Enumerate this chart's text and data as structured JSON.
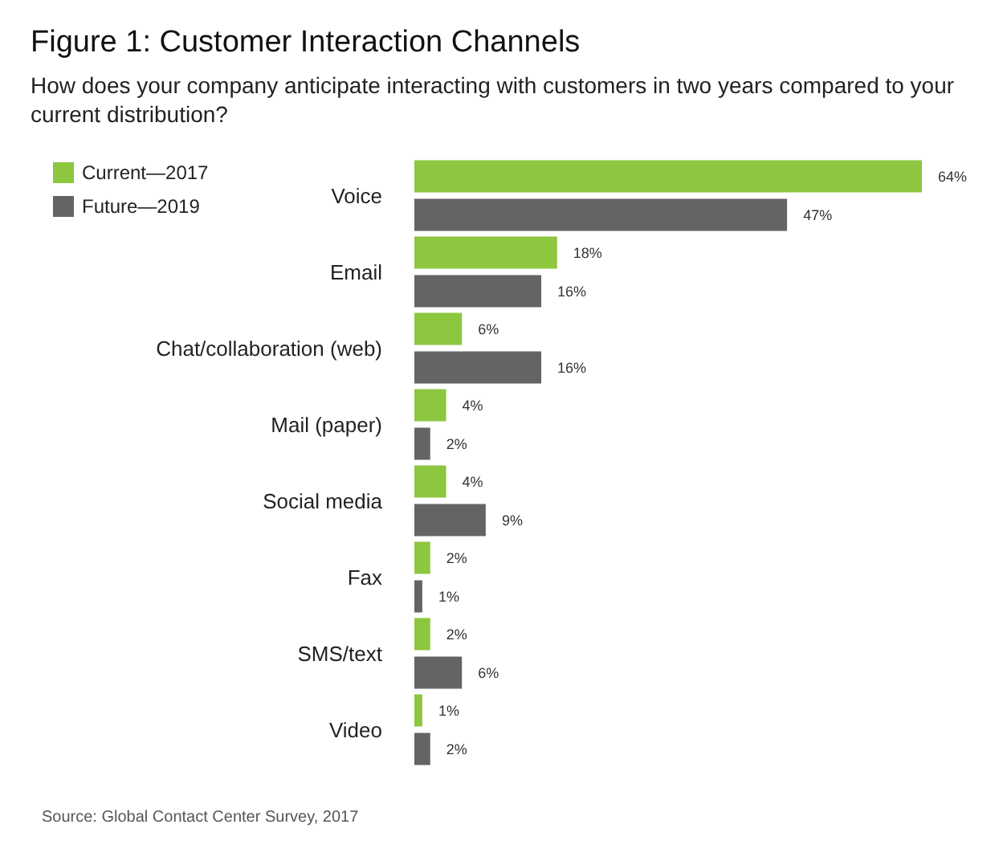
{
  "chart_data": {
    "type": "bar",
    "orientation": "horizontal",
    "title": "Figure 1: Customer Interaction Channels",
    "subtitle": "How does your company anticipate interacting with customers in two years compared to your current distribution?",
    "categories": [
      "Voice",
      "Email",
      "Chat/collaboration (web)",
      "Mail (paper)",
      "Social media",
      "Fax",
      "SMS/text",
      "Video"
    ],
    "series": [
      {
        "name": "Current—2017",
        "color": "#8dc63f",
        "values": [
          64,
          18,
          6,
          4,
          4,
          2,
          2,
          1
        ],
        "value_labels": [
          "64%",
          "18%",
          "6%",
          "4%",
          "4%",
          "2%",
          "2%",
          "1%"
        ]
      },
      {
        "name": "Future—2019",
        "color": "#646464",
        "values": [
          47,
          16,
          16,
          2,
          9,
          1,
          6,
          2
        ],
        "value_labels": [
          "47%",
          "16%",
          "16%",
          "2%",
          "9%",
          "1%",
          "6%",
          "2%"
        ]
      }
    ],
    "legend": "top left",
    "annotations": [
      "Source: Global Contact Center Survey, 2017"
    ]
  }
}
